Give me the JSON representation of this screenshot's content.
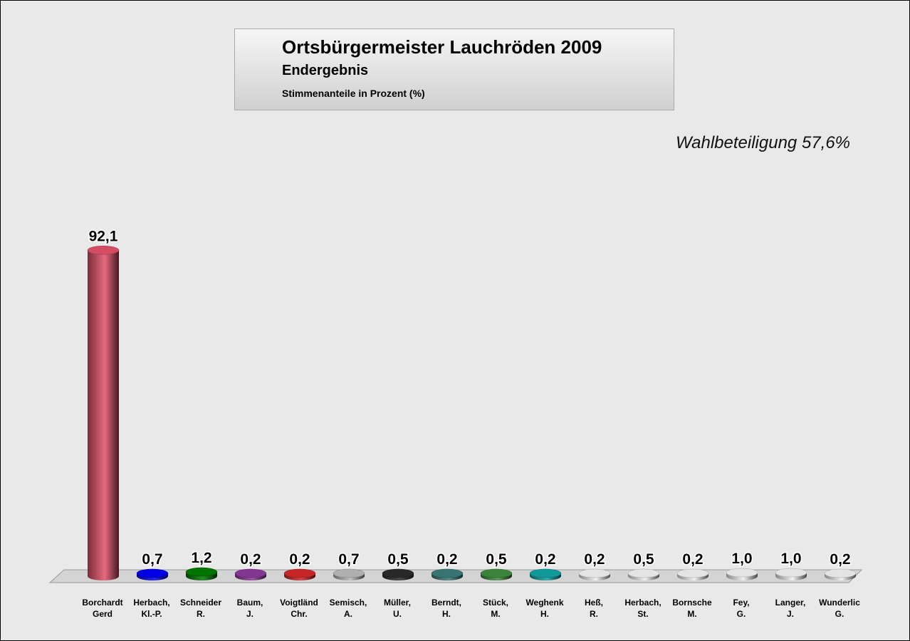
{
  "title": "Ortsbürgermeister Lauchröden 2009",
  "subtitle": "Endergebnis",
  "caption": "Stimmenanteile in Prozent (%)",
  "turnout": "Wahlbeteiligung 57,6%",
  "chart_data": {
    "type": "bar",
    "title": "Ortsbürgermeister Lauchröden 2009",
    "ylabel": "Stimmenanteile in Prozent (%)",
    "ylim": [
      0,
      100
    ],
    "categories": [
      [
        "Borchardt",
        "Gerd"
      ],
      [
        "Herbach,",
        "Kl.-P."
      ],
      [
        "Schneider",
        "R."
      ],
      [
        "Baum,",
        "J."
      ],
      [
        "Voigtländ",
        "Chr."
      ],
      [
        "Semisch,",
        "A."
      ],
      [
        "Müller,",
        "U."
      ],
      [
        "Berndt,",
        "H."
      ],
      [
        "Stück,",
        "M."
      ],
      [
        "Weghenk",
        "H."
      ],
      [
        "Heß,",
        "R."
      ],
      [
        "Herbach,",
        "St."
      ],
      [
        "Bornsche",
        "M."
      ],
      [
        "Fey,",
        "G."
      ],
      [
        "Langer,",
        "J."
      ],
      [
        "Wunderlic",
        "G."
      ]
    ],
    "values": [
      92.1,
      0.7,
      1.2,
      0.2,
      0.2,
      0.7,
      0.5,
      0.2,
      0.5,
      0.2,
      0.2,
      0.5,
      0.2,
      1.0,
      1.0,
      0.2
    ],
    "value_labels": [
      "92,1",
      "0,7",
      "1,2",
      "0,2",
      "0,2",
      "0,7",
      "0,5",
      "0,2",
      "0,5",
      "0,2",
      "0,2",
      "0,5",
      "0,2",
      "1,0",
      "1,0",
      "0,2"
    ],
    "colors": [
      "#e0506a",
      "#0000ee",
      "#007a00",
      "#8b3a9a",
      "#d02828",
      "#b8b8b8",
      "#2a2a2a",
      "#3a7a78",
      "#3f8a3f",
      "#12a0a0",
      "#f0f0f0",
      "#f0f0f0",
      "#f0f0f0",
      "#f0f0f0",
      "#f0f0f0",
      "#f0f0f0"
    ]
  }
}
